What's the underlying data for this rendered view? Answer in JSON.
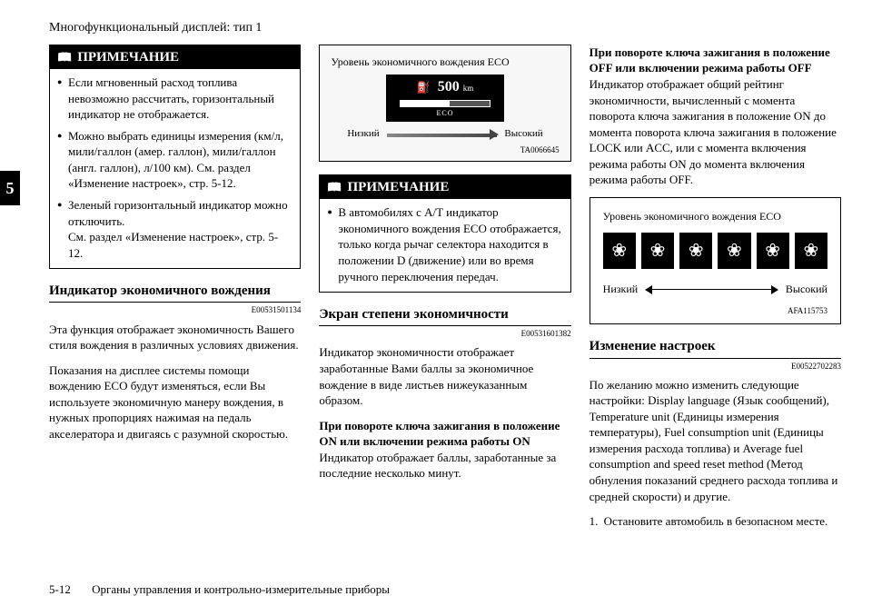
{
  "page_header": "Многофункциональный дисплей: тип 1",
  "tab_number": "5",
  "page_footer_num": "5-12",
  "page_footer_text": "Органы управления и контрольно-измерительные приборы",
  "col1": {
    "note_title": "ПРИМЕЧАНИЕ",
    "note_items": [
      "Если мгновенный расход топлива невозможно рассчитать, горизонтальный индикатор не отображается.",
      "Можно выбрать единицы измерения (км/л, мили/галлон (амер. галлон), мили/галлон (англ. галлон), л/100 км). См. раздел «Изменение настроек», стр. 5-12.",
      "Зеленый горизонтальный индикатор можно отключить.\nСм. раздел «Изменение настроек», стр. 5-12."
    ],
    "section_title": "Индикатор экономичного вождения",
    "doc_id": "E00531501134",
    "para1": "Эта функция отображает экономичность Вашего стиля вождения в различных условиях движения.",
    "para2": "Показания на дисплее системы помощи вождению ECO будут изменяться, если Вы используете экономичную манеру вождения, в нужных пропорциях нажимая на педаль акселератора и двигаясь с разумной скоростью."
  },
  "col2": {
    "fig1": {
      "caption": "Уровень экономичного вождения ECO",
      "value": "500",
      "unit": "km",
      "eco_label": "ECO",
      "low": "Низкий",
      "high": "Высокий",
      "fig_id": "TA0066645"
    },
    "note_title": "ПРИМЕЧАНИЕ",
    "note_item": "В автомобилях с A/T индикатор экономичного вождения ECO отображается, только когда рычаг селектора находится в положении D (движение) или во время ручного переключения передач.",
    "section_title": "Экран степени экономичности",
    "doc_id": "E00531601382",
    "para1": "Индикатор экономичности отображает заработанные Вами баллы за экономичное вождение в виде листьев нижеуказанным образом.",
    "sub_bold": "При повороте ключа зажигания в положение ON или включении режима работы ON",
    "para2": "Индикатор отображает баллы, заработанные за последние несколько минут."
  },
  "col3": {
    "sub_bold": "При повороте ключа зажигания в положение OFF или включении режима работы OFF",
    "para1": "Индикатор отображает общий рейтинг экономичности, вычисленный с момента поворота ключа зажигания в положение ON до момента поворота ключа зажигания в положение LOCK или ACC, или с момента включения режима работы ON до момента включения режима работы OFF.",
    "fig": {
      "caption": "Уровень экономичного вождения ECO",
      "low": "Низкий",
      "high": "Высокий",
      "fig_id": "AFA115753"
    },
    "section_title": "Изменение настроек",
    "doc_id": "E00522702283",
    "para2": "По желанию можно изменить следующие настройки: Display language (Язык сообщений), Temperature unit (Единицы измерения температуры), Fuel consumption unit (Единицы измерения расхода топлива) и Average fuel consumption and speed reset method (Метод обнуления показаний среднего расхода топлива и средней скорости) и другие.",
    "list_item": "Остановите автомобиль в безопасном месте."
  }
}
